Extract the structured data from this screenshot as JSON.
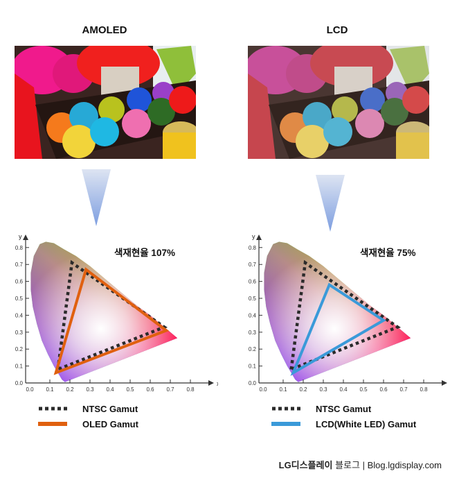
{
  "panels": [
    {
      "id": "amoled",
      "title": "AMOLED",
      "gamut_label": "색재현율 107%",
      "legend": [
        {
          "label": "NTSC Gamut",
          "style": "dotted",
          "color": "#2b2b2b"
        },
        {
          "label": "OLED Gamut",
          "style": "solid",
          "color": "#e0600f"
        }
      ]
    },
    {
      "id": "lcd",
      "title": "LCD",
      "gamut_label": "색재현율 75%",
      "legend": [
        {
          "label": "NTSC Gamut",
          "style": "dotted",
          "color": "#2b2b2b"
        },
        {
          "label": "LCD(White LED) Gamut",
          "style": "solid",
          "color": "#3a9ad9"
        }
      ]
    }
  ],
  "footer": {
    "brand": "LG디스플레이",
    "suffix": " 블로그 | Blog.lgdisplay.com"
  },
  "colors": {
    "arrow_top": "#dde4f2",
    "arrow_bottom": "#7d9ee0",
    "ntsc": "#2b2b2b",
    "oled": "#e0600f",
    "lcd": "#3a9ad9"
  },
  "chart_data": [
    {
      "type": "scatter",
      "title": "AMOLED 색재현율 107%",
      "xlabel": "x",
      "ylabel": "y",
      "xlim": [
        0.0,
        0.8
      ],
      "ylim": [
        0.0,
        0.8
      ],
      "x_ticks": [
        "0.0",
        "0.1",
        "0.2",
        "0.3",
        "0.4",
        "0.5",
        "0.6",
        "0.7",
        "0.8"
      ],
      "y_ticks": [
        "0.0",
        "0.1",
        "0.2",
        "0.3",
        "0.4",
        "0.5",
        "0.6",
        "0.7",
        "0.8"
      ],
      "grid": false,
      "background": "CIE 1931 chromaticity diagram",
      "series": [
        {
          "name": "NTSC Gamut",
          "style": "dotted",
          "color": "#2b2b2b",
          "points": [
            [
              0.14,
              0.08
            ],
            [
              0.21,
              0.71
            ],
            [
              0.67,
              0.33
            ]
          ]
        },
        {
          "name": "OLED Gamut",
          "style": "solid",
          "color": "#e0600f",
          "points": [
            [
              0.13,
              0.06
            ],
            [
              0.28,
              0.67
            ],
            [
              0.68,
              0.31
            ]
          ]
        }
      ],
      "annotation": "색재현율 107%"
    },
    {
      "type": "scatter",
      "title": "LCD 색재현율 75%",
      "xlabel": "x",
      "ylabel": "y",
      "xlim": [
        0.0,
        0.8
      ],
      "ylim": [
        0.0,
        0.8
      ],
      "x_ticks": [
        "0.0",
        "0.1",
        "0.2",
        "0.3",
        "0.4",
        "0.5",
        "0.6",
        "0.7",
        "0.8"
      ],
      "y_ticks": [
        "0.0",
        "0.1",
        "0.2",
        "0.3",
        "0.4",
        "0.5",
        "0.6",
        "0.7",
        "0.8"
      ],
      "grid": false,
      "background": "CIE 1931 chromaticity diagram",
      "series": [
        {
          "name": "NTSC Gamut",
          "style": "dotted",
          "color": "#2b2b2b",
          "points": [
            [
              0.14,
              0.08
            ],
            [
              0.21,
              0.71
            ],
            [
              0.67,
              0.33
            ]
          ]
        },
        {
          "name": "LCD(White LED) Gamut",
          "style": "solid",
          "color": "#3a9ad9",
          "points": [
            [
              0.15,
              0.06
            ],
            [
              0.33,
              0.58
            ],
            [
              0.6,
              0.37
            ]
          ]
        }
      ],
      "annotation": "색재현율 75%"
    }
  ]
}
